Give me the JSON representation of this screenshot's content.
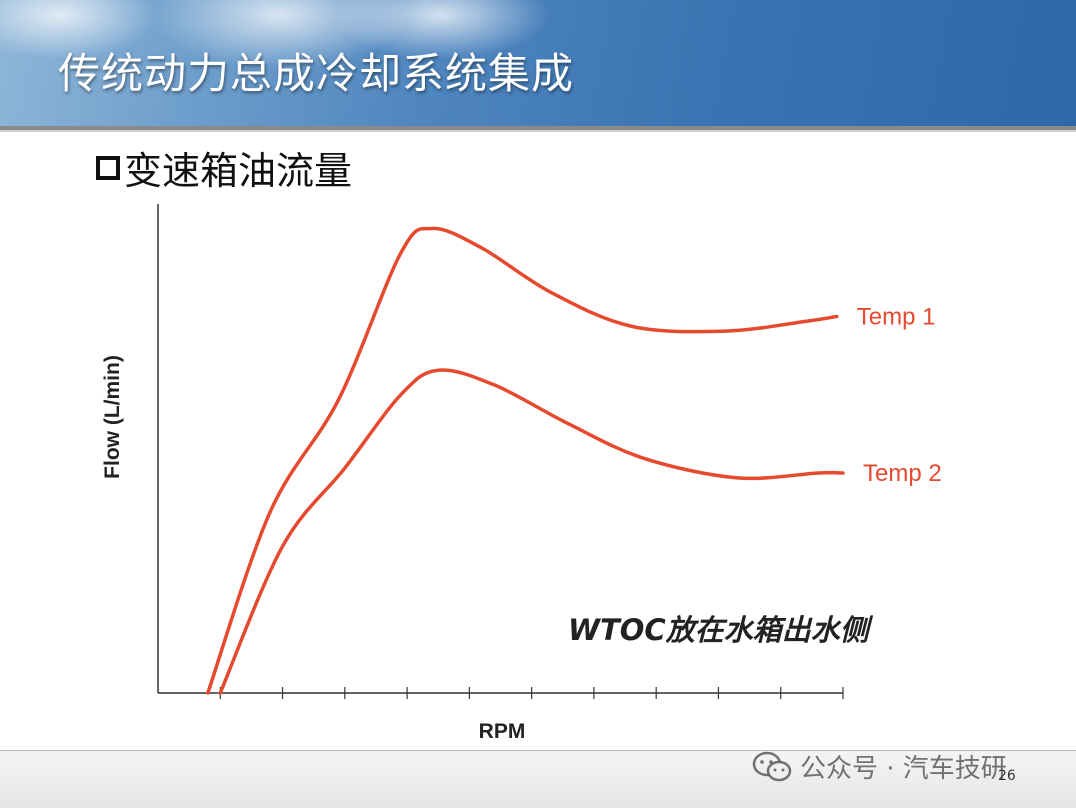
{
  "header": {
    "title": "传统动力总成冷却系统集成"
  },
  "subtitle": "变速箱油流量",
  "chart_data": {
    "type": "line",
    "xlabel": "RPM",
    "ylabel": "Flow (L/min)",
    "xlim": [
      0,
      11
    ],
    "ylim": [
      0,
      100
    ],
    "x_ticks": [
      1,
      2,
      3,
      4,
      5,
      6,
      7,
      8,
      9,
      10,
      11
    ],
    "series": [
      {
        "name": "Temp 1",
        "color": "#e64a2e",
        "x": [
          0.8,
          1.8,
          2.9,
          3.9,
          4.4,
          5.2,
          6.3,
          7.6,
          9.1,
          10.4,
          10.9
        ],
        "y": [
          0,
          37,
          60,
          90,
          95,
          91,
          82,
          75,
          74,
          76,
          77
        ]
      },
      {
        "name": "Temp 2",
        "color": "#e64a2e",
        "x": [
          1.0,
          2.0,
          3.0,
          3.9,
          4.5,
          5.4,
          6.6,
          7.8,
          9.3,
          10.6,
          11.0
        ],
        "y": [
          0,
          30,
          46,
          61,
          66,
          63,
          55,
          48,
          44,
          45,
          45
        ]
      }
    ],
    "annotation": "WTOC放在水箱出水侧"
  },
  "watermark": {
    "text": "公众号 · 汽车技研",
    "icon": "wechat-icon"
  },
  "page_number": "26"
}
